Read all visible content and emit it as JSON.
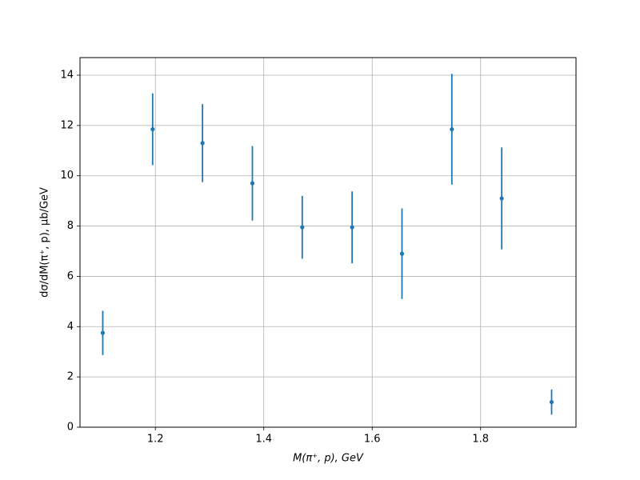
{
  "chart_data": {
    "type": "errorbar",
    "xlabel": "M(π⁺, p), GeV",
    "ylabel": "dσ/dM(π⁺, p), μb/GeV",
    "x": [
      1.103,
      1.195,
      1.287,
      1.379,
      1.471,
      1.563,
      1.655,
      1.747,
      1.839,
      1.931
    ],
    "values": [
      3.75,
      11.85,
      11.3,
      9.7,
      7.95,
      7.95,
      6.9,
      11.85,
      9.1,
      1.0
    ],
    "errors": [
      0.88,
      1.43,
      1.55,
      1.48,
      1.25,
      1.43,
      1.8,
      2.2,
      2.03,
      0.5
    ],
    "color": "#1f77b4",
    "xlim": [
      1.061,
      1.976
    ],
    "ylim": [
      0,
      14.7
    ],
    "xticks": [
      1.2,
      1.4,
      1.6,
      1.8
    ],
    "yticks": [
      0,
      2,
      4,
      6,
      8,
      10,
      12,
      14
    ],
    "grid": true
  }
}
